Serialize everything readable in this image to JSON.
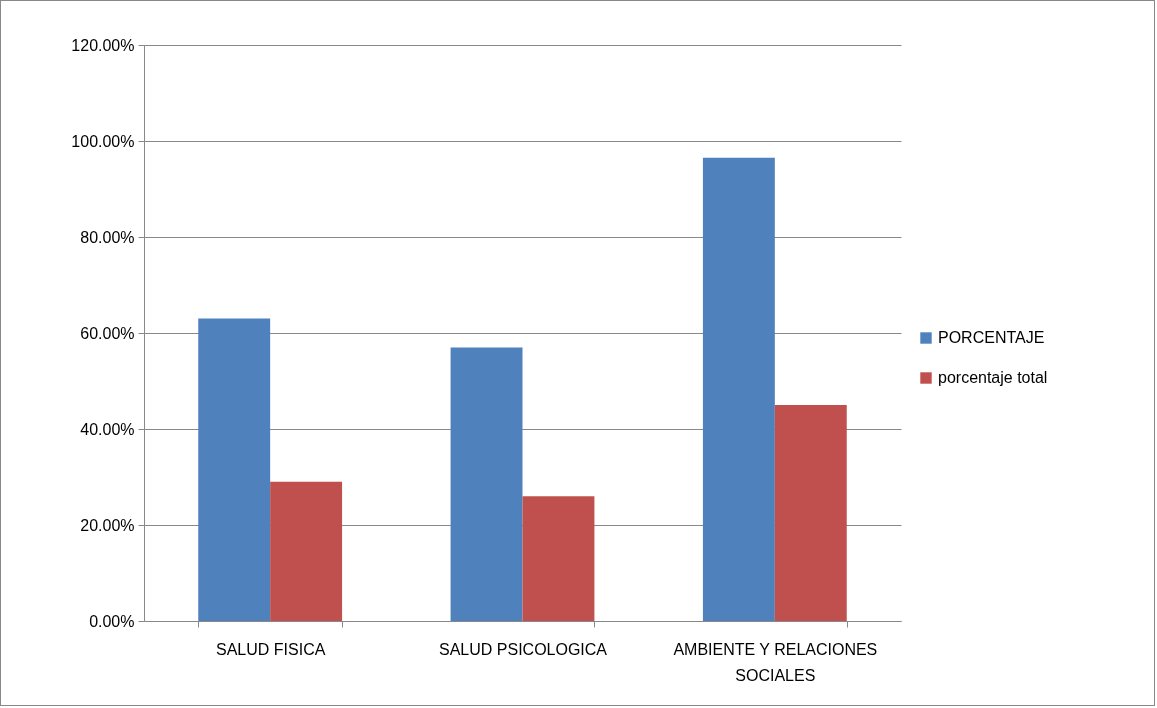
{
  "chart_data": {
    "type": "bar",
    "categories": [
      "SALUD FISICA",
      "SALUD PSICOLOGICA",
      "AMBIENTE Y RELACIONES SOCIALES"
    ],
    "series": [
      {
        "name": "PORCENTAJE",
        "color": "#4f81bd",
        "values": [
          63,
          57,
          96.5
        ]
      },
      {
        "name": "porcentaje total",
        "color": "#c0504d",
        "values": [
          29,
          26,
          45
        ]
      }
    ],
    "ylim": [
      0,
      120
    ],
    "yticks": [
      {
        "value": 0,
        "label": "0.00%"
      },
      {
        "value": 20,
        "label": "20.00%"
      },
      {
        "value": 40,
        "label": "40.00%"
      },
      {
        "value": 60,
        "label": "60.00%"
      },
      {
        "value": 80,
        "label": "80.00%"
      },
      {
        "value": 100,
        "label": "100.00%"
      },
      {
        "value": 120,
        "label": "120.00%"
      }
    ],
    "grid": "y",
    "legend": "right"
  }
}
